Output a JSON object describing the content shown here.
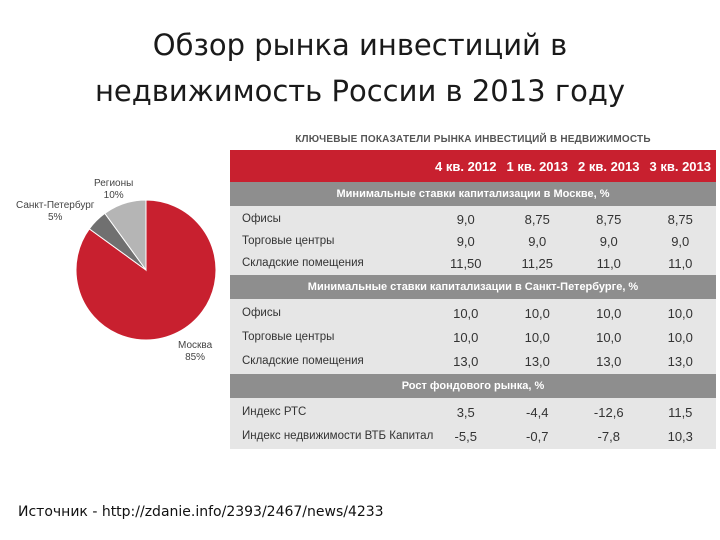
{
  "slide": {
    "title_line1": "Обзор рынка инвестиций в",
    "title_line2": "недвижимость России в 2013 году",
    "source": "Источник - http://zdanie.info/2393/2467/news/4233"
  },
  "pie": {
    "slices": [
      {
        "name": "Москва",
        "percent_label": "85%",
        "value": 85,
        "color": "#c8202f"
      },
      {
        "name": "Санкт-Петербург",
        "percent_label": "5%",
        "value": 5,
        "color": "#707070"
      },
      {
        "name": "Регионы",
        "percent_label": "10%",
        "value": 10,
        "color": "#b5b5b5"
      }
    ]
  },
  "table": {
    "heading": "КЛЮЧЕВЫЕ ПОКАЗАТЕЛИ РЫНКА ИНВЕСТИЦИЙ В НЕДВИЖИМОСТЬ",
    "columns": [
      "4 кв. 2012",
      "1 кв. 2013",
      "2 кв. 2013",
      "3 кв. 2013"
    ],
    "sections": [
      {
        "title": "Минимальные ставки капитализации в Москве, %",
        "rows": [
          {
            "label": "Офисы",
            "values": [
              "9,0",
              "8,75",
              "8,75",
              "8,75"
            ]
          },
          {
            "label": "Торговые центры",
            "values": [
              "9,0",
              "9,0",
              "9,0",
              "9,0"
            ]
          },
          {
            "label": "Складские помещения",
            "values": [
              "11,50",
              "11,25",
              "11,0",
              "11,0"
            ]
          }
        ]
      },
      {
        "title": "Минимальные ставки капитализации в Санкт-Петербурге, %",
        "rows": [
          {
            "label": "Офисы",
            "values": [
              "10,0",
              "10,0",
              "10,0",
              "10,0"
            ]
          },
          {
            "label": "Торговые центры",
            "values": [
              "10,0",
              "10,0",
              "10,0",
              "10,0"
            ]
          },
          {
            "label": "Складские помещения",
            "values": [
              "13,0",
              "13,0",
              "13,0",
              "13,0"
            ]
          }
        ]
      },
      {
        "title": "Рост фондового рынка, %",
        "rows": [
          {
            "label": "Индекс РТС",
            "values": [
              "3,5",
              "-4,4",
              "-12,6",
              "11,5"
            ]
          },
          {
            "label": "Индекс недвижимости ВТБ Капитал",
            "values": [
              "-5,5",
              "-0,7",
              "-7,8",
              "10,3"
            ]
          }
        ]
      }
    ]
  }
}
